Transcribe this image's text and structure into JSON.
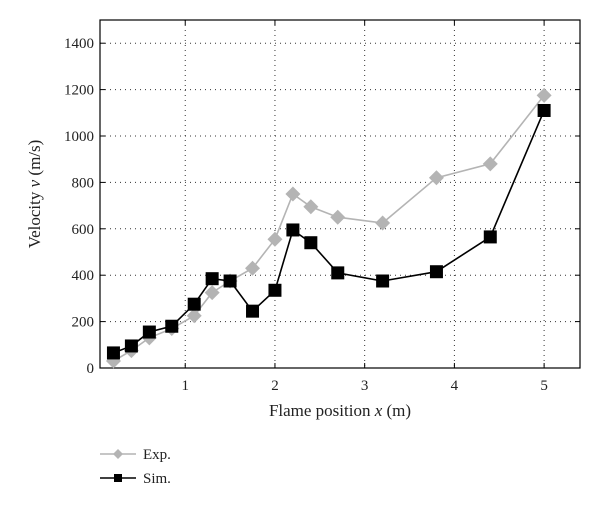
{
  "chart_data": {
    "type": "line",
    "xlabel": {
      "prefix": "Flame position ",
      "var": "x",
      "suffix": " (m)"
    },
    "ylabel": {
      "prefix": "Velocity ",
      "var": "v",
      "suffix": " (m/s)"
    },
    "xlim": [
      0.05,
      5.4
    ],
    "ylim": [
      0,
      1500
    ],
    "xticks": [
      1,
      2,
      3,
      4,
      5
    ],
    "yticks": [
      0,
      200,
      400,
      600,
      800,
      1000,
      1200,
      1400
    ],
    "grid": true,
    "legend_position": "bottom-left",
    "series": [
      {
        "name": "Exp.",
        "marker": "diamond",
        "color": "#b4b4b4",
        "x": [
          0.2,
          0.4,
          0.6,
          0.85,
          1.1,
          1.3,
          1.5,
          1.75,
          2.0,
          2.2,
          2.4,
          2.7,
          3.2,
          3.8,
          4.4,
          5.0
        ],
        "y": [
          30,
          75,
          130,
          170,
          225,
          325,
          375,
          430,
          555,
          750,
          695,
          650,
          625,
          820,
          880,
          1175
        ]
      },
      {
        "name": "Sim.",
        "marker": "square",
        "color": "#000000",
        "x": [
          0.2,
          0.4,
          0.6,
          0.85,
          1.1,
          1.3,
          1.5,
          1.75,
          2.0,
          2.2,
          2.4,
          2.7,
          3.2,
          3.8,
          4.4,
          5.0
        ],
        "y": [
          65,
          95,
          155,
          180,
          275,
          385,
          375,
          245,
          335,
          595,
          540,
          410,
          375,
          415,
          565,
          1110
        ]
      }
    ]
  }
}
